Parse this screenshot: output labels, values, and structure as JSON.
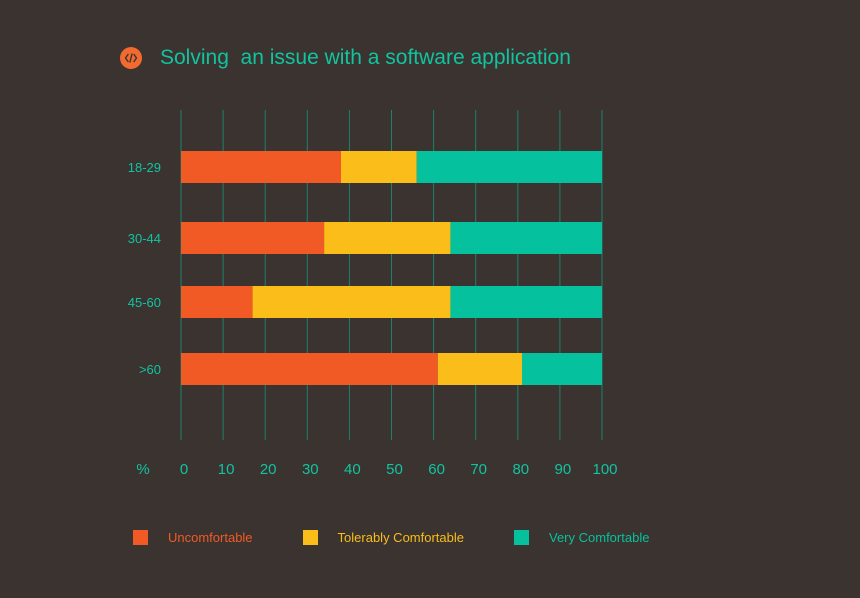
{
  "colors": {
    "background": "#3a3330",
    "uncomfortable": "#f15a24",
    "tolerably": "#fbbd1a",
    "very": "#06c19d",
    "text": "#11c4a0"
  },
  "chart_data": {
    "type": "bar",
    "orientation": "horizontal",
    "stacked": true,
    "title": "Solving  an issue with a software application",
    "title_icon": "code-icon",
    "categories": [
      "18-29",
      "30-44",
      "45-60",
      ">60"
    ],
    "xlabel": "%",
    "xlim": [
      0,
      100
    ],
    "x_ticks": [
      "0",
      "10",
      "20",
      "30",
      "40",
      "50",
      "60",
      "70",
      "80",
      "90",
      "100"
    ],
    "grid": true,
    "legend_position": "bottom",
    "series": [
      {
        "name": "Uncomfortable",
        "color": "#f15a24",
        "values": [
          38,
          34,
          17,
          61
        ]
      },
      {
        "name": "Tolerably Comfortable",
        "color": "#fbbd1a",
        "values": [
          18,
          30,
          47,
          20
        ]
      },
      {
        "name": "Very Comfortable",
        "color": "#06c19d",
        "values": [
          44,
          36,
          36,
          19
        ]
      }
    ]
  }
}
